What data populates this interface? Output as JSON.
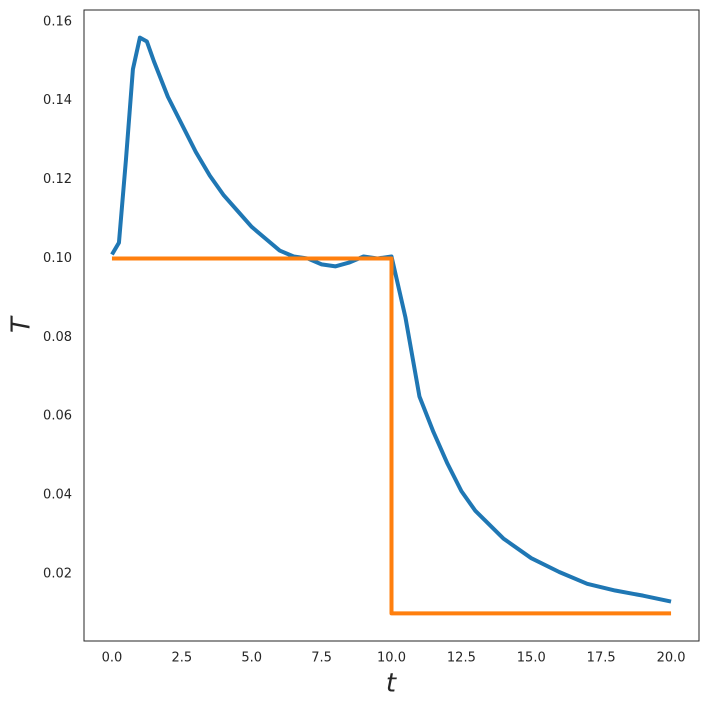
{
  "chart_data": {
    "type": "line",
    "x_label": "t",
    "y_label": "T",
    "xlim": [
      -1,
      21
    ],
    "ylim": [
      0.003,
      0.163
    ],
    "xticks": [
      {
        "value": 0,
        "label": "0.0"
      },
      {
        "value": 2.5,
        "label": "2.5"
      },
      {
        "value": 5,
        "label": "5.0"
      },
      {
        "value": 7.5,
        "label": "7.5"
      },
      {
        "value": 10,
        "label": "10.0"
      },
      {
        "value": 12.5,
        "label": "12.5"
      },
      {
        "value": 15,
        "label": "15.0"
      },
      {
        "value": 17.5,
        "label": "17.5"
      },
      {
        "value": 20,
        "label": "20.0"
      }
    ],
    "yticks": [
      0.02,
      0.04,
      0.06,
      0.08,
      {
        "value": 0.1,
        "label": "0.10"
      },
      0.12,
      0.14,
      0.16
    ],
    "grid": false,
    "series": [
      {
        "color": "#1f77b4",
        "x": [
          0,
          0.25,
          0.5,
          0.75,
          1.0,
          1.25,
          1.5,
          2.0,
          2.5,
          3.0,
          3.5,
          4.0,
          4.5,
          5.0,
          5.5,
          6.0,
          6.5,
          7.0,
          7.5,
          8.0,
          8.5,
          9.0,
          9.5,
          10.0,
          10.5,
          11.0,
          11.5,
          12.0,
          12.5,
          13.0,
          14.0,
          15.0,
          16.0,
          17.0,
          18.0,
          19.0,
          20.0
        ],
        "values": [
          0.101,
          0.104,
          0.125,
          0.148,
          0.156,
          0.155,
          0.15,
          0.141,
          0.134,
          0.127,
          0.121,
          0.116,
          0.112,
          0.108,
          0.105,
          0.102,
          0.1005,
          0.1,
          0.0985,
          0.098,
          0.099,
          0.1005,
          0.1,
          0.1005,
          0.085,
          0.065,
          0.056,
          0.048,
          0.041,
          0.036,
          0.029,
          0.024,
          0.0205,
          0.0175,
          0.0158,
          0.0145,
          0.013
        ]
      },
      {
        "color": "#ff7f0e",
        "x": [
          0,
          10,
          10,
          20
        ],
        "values": [
          0.1,
          0.1,
          0.01,
          0.01
        ]
      }
    ]
  }
}
